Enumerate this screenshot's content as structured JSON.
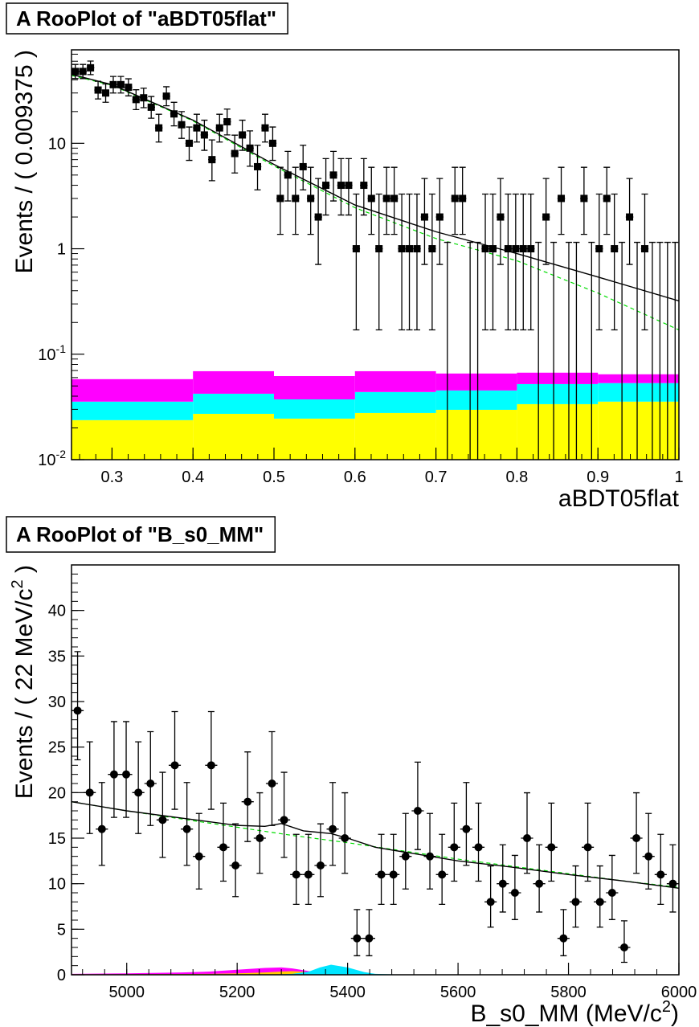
{
  "chart_data": [
    {
      "type": "scatter",
      "title": "A RooPlot of \"aBDT05flat\"",
      "xlabel": "aBDT05flat",
      "ylabel": "Events / ( 0.009375 )",
      "log_y": true,
      "xlim": [
        0.25,
        1
      ],
      "ylim": [
        0.01,
        77
      ],
      "xticks": [
        0.3,
        0.4,
        0.5,
        0.6,
        0.7,
        0.8,
        0.9,
        1
      ],
      "yticks": [
        {
          "value": 0.01,
          "label": "10",
          "exponent": "-2"
        },
        {
          "value": 0.1,
          "label": "10",
          "exponent": "-1"
        },
        1,
        10
      ],
      "points": {
        "color": "#000000",
        "marker": "square",
        "xerr": 0.0046875,
        "x": [
          0.2546875,
          0.2640625,
          0.2734375,
          0.2828125,
          0.2921875,
          0.3015625,
          0.3109375,
          0.3203125,
          0.3296875,
          0.3390625,
          0.3484375,
          0.3578125,
          0.3671875,
          0.3765625,
          0.3859375,
          0.3953125,
          0.4046875,
          0.4140625,
          0.4234375,
          0.4328125,
          0.4421875,
          0.4515625,
          0.4609375,
          0.4703125,
          0.4796875,
          0.4890625,
          0.4984375,
          0.5078125,
          0.5171875,
          0.5265625,
          0.5359375,
          0.5453125,
          0.5546875,
          0.5640625,
          0.5734375,
          0.5828125,
          0.5921875,
          0.6015625,
          0.6109375,
          0.6203125,
          0.6296875,
          0.6390625,
          0.6484375,
          0.6578125,
          0.6671875,
          0.6765625,
          0.6859375,
          0.6953125,
          0.7046875,
          0.7140625,
          0.7234375,
          0.7328125,
          0.7421875,
          0.7515625,
          0.7609375,
          0.7703125,
          0.7796875,
          0.7890625,
          0.7984375,
          0.8078125,
          0.8171875,
          0.8265625,
          0.8359375,
          0.8453125,
          0.8546875,
          0.8640625,
          0.8734375,
          0.8828125,
          0.8921875,
          0.9015625,
          0.9109375,
          0.9203125,
          0.9296875,
          0.9390625,
          0.9484375,
          0.9578125,
          0.9671875,
          0.9765625,
          0.9859375,
          0.9953125
        ],
        "values": [
          48,
          48,
          52,
          32,
          30,
          36,
          36,
          34,
          26,
          27,
          22,
          14,
          28,
          19,
          15,
          10,
          14,
          12,
          7,
          14,
          16,
          8,
          12,
          9,
          6,
          14,
          10,
          3,
          5,
          3,
          6,
          3,
          2,
          4,
          5,
          4,
          4,
          1,
          4,
          3,
          1,
          3,
          3,
          1,
          1,
          1,
          2,
          1,
          2,
          0,
          3,
          3,
          0,
          0,
          1,
          1,
          2,
          1,
          1,
          1,
          1,
          0,
          2,
          0,
          3,
          0,
          0,
          3,
          0,
          1,
          3,
          1,
          0,
          2,
          0,
          1,
          0,
          0,
          0,
          0
        ],
        "err_low": [
          6.93,
          6.93,
          7.21,
          5.67,
          5.49,
          6.0,
          6.0,
          5.84,
          5.12,
          5.22,
          4.72,
          3.72,
          5.31,
          4.37,
          3.86,
          3.11,
          3.72,
          3.42,
          2.58,
          3.72,
          3.99,
          2.77,
          3.42,
          2.94,
          2.38,
          3.72,
          3.11,
          1.63,
          2.16,
          1.63,
          2.38,
          1.63,
          1.29,
          1.91,
          2.16,
          1.91,
          1.91,
          0.83,
          1.91,
          1.63,
          0.83,
          1.63,
          1.63,
          0.83,
          0.83,
          0.83,
          1.29,
          0.83,
          1.29,
          0,
          1.63,
          1.63,
          0,
          0,
          0.83,
          0.83,
          1.29,
          0.83,
          0.83,
          0.83,
          0.83,
          0,
          1.29,
          0,
          1.63,
          0,
          0,
          1.63,
          0,
          0.83,
          1.63,
          0.83,
          0,
          1.29,
          0,
          0.83,
          0,
          0,
          0,
          0
        ],
        "err_high": [
          7.97,
          7.97,
          8.25,
          6.74,
          6.57,
          7.06,
          7.06,
          6.9,
          6.2,
          6.3,
          5.8,
          4.85,
          6.39,
          5.47,
          4.98,
          4.27,
          4.85,
          4.57,
          3.77,
          4.85,
          5.11,
          3.95,
          4.57,
          4.11,
          3.58,
          4.85,
          4.27,
          2.92,
          3.38,
          2.92,
          3.58,
          2.92,
          2.64,
          3.16,
          3.38,
          3.16,
          3.16,
          2.3,
          3.16,
          2.92,
          2.3,
          2.92,
          2.92,
          2.3,
          2.3,
          2.3,
          2.64,
          2.3,
          2.64,
          1.15,
          2.92,
          2.92,
          1.15,
          1.15,
          2.3,
          2.3,
          2.64,
          2.3,
          2.3,
          2.3,
          2.3,
          1.15,
          2.64,
          1.15,
          2.92,
          1.15,
          1.15,
          2.92,
          1.15,
          2.3,
          2.92,
          2.3,
          1.15,
          2.64,
          1.15,
          2.3,
          1.15,
          1.15,
          1.15,
          1.15
        ]
      },
      "curves": [
        {
          "color": "#00dd00",
          "style": "dashed",
          "x": [
            0.25,
            0.3,
            0.4,
            0.5,
            0.6,
            0.7,
            0.8,
            0.9,
            1
          ],
          "values": [
            44,
            35.5,
            16.3,
            6.1,
            2.45,
            1.25,
            0.77,
            0.38,
            0.17
          ]
        },
        {
          "color": "#000000",
          "style": "solid",
          "x": [
            0.25,
            0.3,
            0.4,
            0.5,
            0.6,
            0.7,
            0.8,
            0.9,
            1
          ],
          "values": [
            45,
            36,
            16.6,
            6.3,
            2.6,
            1.45,
            0.9,
            0.54,
            0.32
          ]
        }
      ],
      "stack": {
        "edges": [
          0.25,
          0.4,
          0.5,
          0.6,
          0.7,
          0.8,
          0.9,
          1
        ],
        "series": [
          {
            "color": "#ffff00",
            "values": [
              0.0237,
              0.0272,
              0.0245,
              0.0277,
              0.0297,
              0.0336,
              0.0355
            ]
          },
          {
            "color": "#00ffff",
            "values": [
              0.0118,
              0.015,
              0.0128,
              0.0161,
              0.0156,
              0.0185,
              0.0177
            ]
          },
          {
            "color": "#ff00ff",
            "values": [
              0.0225,
              0.0268,
              0.0247,
              0.0252,
              0.0203,
              0.0147,
              0.0113
            ]
          }
        ]
      }
    },
    {
      "type": "scatter",
      "title": "A RooPlot of \"B_s0_MM\"",
      "xlabel": "B_s0_MM (MeV/c",
      "xlabel_sup": "2",
      "xlabel_end": ")",
      "ylabel": "Events / ( 22 MeV/c",
      "ylabel_sup": "2",
      "ylabel_end": " )",
      "log_y": false,
      "xlim": [
        4900,
        6000
      ],
      "ylim": [
        0,
        45
      ],
      "xticks": [
        5000,
        5200,
        5400,
        5600,
        5800,
        6000
      ],
      "yticks": [
        0,
        5,
        10,
        15,
        20,
        25,
        30,
        35,
        40
      ],
      "points": {
        "color": "#000000",
        "marker": "circle",
        "xerr": 11,
        "x": [
          4911,
          4933,
          4955,
          4977,
          4999,
          5021,
          5043,
          5065,
          5087,
          5109,
          5131,
          5153,
          5175,
          5197,
          5219,
          5241,
          5263,
          5285,
          5307,
          5329,
          5351,
          5373,
          5395,
          5417,
          5439,
          5461,
          5483,
          5505,
          5527,
          5549,
          5571,
          5593,
          5615,
          5637,
          5659,
          5681,
          5703,
          5725,
          5747,
          5769,
          5791,
          5813,
          5835,
          5857,
          5879,
          5901,
          5923,
          5945,
          5967,
          5989
        ],
        "values": [
          29,
          20,
          16,
          22,
          22,
          20,
          21,
          17,
          23,
          16,
          13,
          23,
          14,
          12,
          19,
          15,
          21,
          17,
          11,
          11,
          12,
          16,
          15,
          4,
          4,
          11,
          11,
          13,
          18,
          13,
          11,
          14,
          16,
          14,
          8,
          10,
          9,
          15,
          10,
          14,
          4,
          8,
          14,
          8,
          9,
          3,
          15,
          13,
          11,
          10
        ],
        "err_low": [
          5.4,
          4.49,
          3.99,
          4.72,
          4.72,
          4.49,
          4.61,
          4.12,
          4.83,
          3.99,
          3.58,
          4.83,
          3.72,
          3.42,
          4.37,
          3.86,
          4.61,
          4.12,
          3.27,
          3.27,
          3.42,
          3.99,
          3.86,
          1.91,
          1.91,
          3.27,
          3.27,
          3.58,
          4.25,
          3.58,
          3.27,
          3.72,
          3.99,
          3.72,
          2.77,
          3.11,
          2.94,
          3.86,
          3.11,
          3.72,
          1.91,
          2.77,
          3.72,
          2.77,
          2.94,
          1.63,
          3.86,
          3.58,
          3.27,
          3.11
        ],
        "err_high": [
          6.48,
          5.58,
          5.11,
          5.8,
          5.8,
          5.58,
          5.69,
          5.23,
          5.9,
          5.11,
          4.71,
          5.9,
          4.85,
          4.57,
          5.47,
          4.98,
          5.69,
          5.23,
          4.42,
          4.42,
          4.57,
          5.11,
          4.98,
          3.16,
          3.16,
          4.42,
          4.42,
          4.71,
          5.35,
          4.71,
          4.42,
          4.85,
          5.11,
          4.85,
          3.95,
          4.27,
          4.11,
          4.98,
          4.27,
          4.85,
          3.16,
          3.95,
          4.85,
          3.95,
          4.11,
          2.92,
          4.98,
          4.71,
          4.42,
          4.27
        ]
      },
      "areas": {
        "x": [
          4900,
          5000,
          5100,
          5150,
          5200,
          5250,
          5280,
          5300,
          5330,
          5350,
          5370,
          5400,
          5430,
          5450,
          5500,
          6000
        ],
        "series": [
          {
            "color": "#ff00ff",
            "values": [
              0.1,
              0.15,
              0.25,
              0.35,
              0.55,
              0.75,
              0.8,
              0.7,
              0.4,
              0.25,
              0.15,
              0.08,
              0.05,
              0.03,
              0.02,
              0
            ]
          },
          {
            "color": "#ffcc00",
            "values": [
              0.05,
              0.05,
              0.08,
              0.1,
              0.15,
              0.25,
              0.35,
              0.4,
              0.3,
              0.2,
              0.1,
              0.05,
              0.02,
              0.01,
              0,
              0
            ]
          },
          {
            "color": "#00e5ff",
            "values": [
              0,
              0,
              0,
              0,
              0,
              0.02,
              0.05,
              0.1,
              0.35,
              0.8,
              1.1,
              0.8,
              0.3,
              0.1,
              0.02,
              0
            ]
          }
        ]
      },
      "curves": [
        {
          "color": "#00dd00",
          "style": "dashed",
          "x": [
            4900,
            5000,
            5100,
            5200,
            5300,
            5400,
            5500,
            5600,
            5700,
            5800,
            5900,
            6000
          ],
          "values": [
            19,
            18,
            17.1,
            16.2,
            15.3,
            14.5,
            13.6,
            12.7,
            11.9,
            11.1,
            10.3,
            9.6
          ]
        },
        {
          "color": "#000000",
          "style": "solid",
          "x": [
            4900,
            5000,
            5100,
            5200,
            5250,
            5280,
            5320,
            5370,
            5400,
            5450,
            5500,
            5600,
            5700,
            5800,
            5900,
            6000
          ],
          "values": [
            19,
            18,
            17.2,
            16.4,
            16.3,
            16.6,
            15.8,
            15.5,
            15,
            14,
            13.5,
            12.5,
            11.8,
            11,
            10.3,
            9.5
          ]
        }
      ]
    }
  ]
}
